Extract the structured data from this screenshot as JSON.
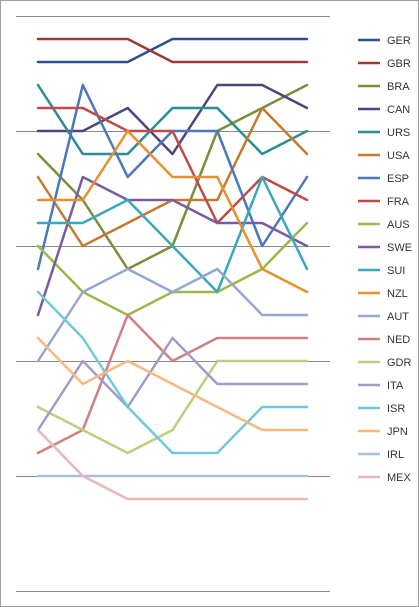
{
  "chart_data": {
    "type": "line",
    "subtype": "bump-rank",
    "x": [
      1,
      2,
      3,
      4,
      5,
      6,
      7
    ],
    "ylim": [
      1,
      25
    ],
    "y_inverted": true,
    "grid": "horizontal",
    "legend": "right",
    "series": [
      {
        "name": "GER",
        "color": "#2e4f8f",
        "values": [
          2,
          2,
          2,
          1,
          1,
          1,
          1
        ]
      },
      {
        "name": "GBR",
        "color": "#9c3a36",
        "values": [
          1,
          1,
          1,
          2,
          2,
          2,
          2
        ]
      },
      {
        "name": "BRA",
        "color": "#7a8f3a",
        "values": [
          6,
          8,
          11,
          10,
          5,
          4,
          3
        ]
      },
      {
        "name": "CAN",
        "color": "#54427a",
        "values": [
          5,
          5,
          4,
          6,
          3,
          3,
          4
        ]
      },
      {
        "name": "URS",
        "color": "#2a8c94",
        "values": [
          3,
          6,
          6,
          4,
          4,
          6,
          5
        ]
      },
      {
        "name": "USA",
        "color": "#c8782e",
        "values": [
          7,
          10,
          9,
          8,
          8,
          4,
          6
        ]
      },
      {
        "name": "ESP",
        "color": "#4a78b8",
        "values": [
          11,
          3,
          7,
          5,
          5,
          10,
          7
        ]
      },
      {
        "name": "FRA",
        "color": "#bf4a46",
        "values": [
          4,
          4,
          5,
          5,
          9,
          7,
          8
        ]
      },
      {
        "name": "AUS",
        "color": "#9cb848",
        "values": [
          10,
          12,
          13,
          12,
          12,
          11,
          9
        ]
      },
      {
        "name": "SWE",
        "color": "#7a5c9e",
        "values": [
          13,
          7,
          8,
          8,
          9,
          9,
          10
        ]
      },
      {
        "name": "SUI",
        "color": "#3aa8b8",
        "values": [
          9,
          9,
          8,
          10,
          12,
          7,
          11
        ]
      },
      {
        "name": "NZL",
        "color": "#e8902e",
        "values": [
          8,
          8,
          5,
          7,
          7,
          11,
          12
        ]
      },
      {
        "name": "AUT",
        "color": "#92a8d0",
        "values": [
          15,
          12,
          11,
          12,
          11,
          13,
          13
        ]
      },
      {
        "name": "NED",
        "color": "#d08080",
        "values": [
          19,
          18,
          13,
          15,
          14,
          14,
          14
        ]
      },
      {
        "name": "GDR",
        "color": "#b8d080",
        "values": [
          17,
          18,
          19,
          18,
          15,
          15,
          15
        ]
      },
      {
        "name": "ITA",
        "color": "#a898c8",
        "values": [
          18,
          15,
          17,
          14,
          16,
          16,
          16
        ]
      },
      {
        "name": "ISR",
        "color": "#70c8d8",
        "values": [
          12,
          14,
          17,
          19,
          19,
          17,
          17
        ]
      },
      {
        "name": "JPN",
        "color": "#f8b880",
        "values": [
          14,
          16,
          15,
          16,
          17,
          18,
          18
        ]
      },
      {
        "name": "IRL",
        "color": "#a8c0e0",
        "values": [
          20,
          20,
          20,
          20,
          20,
          20,
          20
        ]
      },
      {
        "name": "MEX",
        "color": "#e8b8b8",
        "values": [
          18,
          20,
          21,
          21,
          21,
          21,
          21
        ]
      }
    ]
  }
}
